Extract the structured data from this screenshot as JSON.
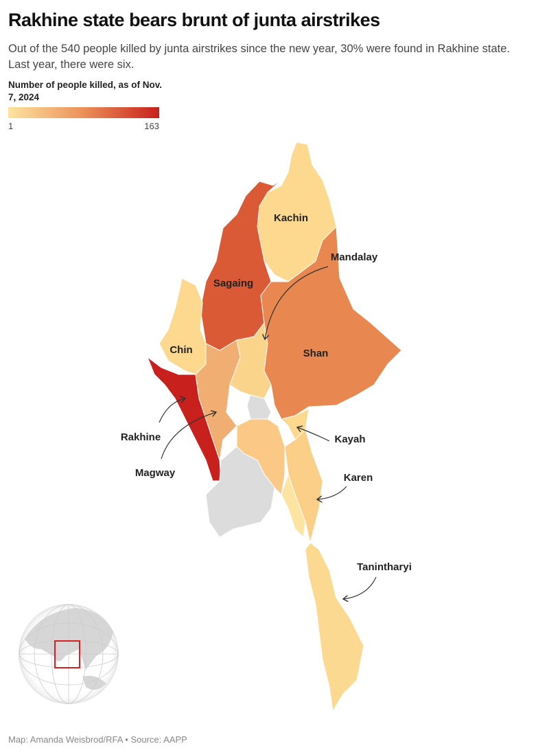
{
  "title": "Rakhine state bears brunt of junta airstrikes",
  "subtitle": "Out of the 540 people killed by junta airstrikes since the new year, 30% were found in Rakhine state. Last year, there were six.",
  "legend": {
    "title": "Number of people killed, as of Nov. 7, 2024",
    "min_label": "1",
    "max_label": "163",
    "color_low": "#fde3a0",
    "color_mid": "#eb9058",
    "color_high": "#c8201d",
    "no_data_color": "#dcdcdc"
  },
  "regions": [
    {
      "id": "kachin",
      "label": "Kachin",
      "color": "#fcd98f"
    },
    {
      "id": "sagaing",
      "label": "Sagaing",
      "color": "#d95a34"
    },
    {
      "id": "chin",
      "label": "Chin",
      "color": "#fcd98f"
    },
    {
      "id": "rakhine",
      "label": "Rakhine",
      "color": "#c8201d"
    },
    {
      "id": "magway",
      "label": "Magway",
      "color": "#f1ae72"
    },
    {
      "id": "mandalay",
      "label": "Mandalay",
      "color": "#fbd48c"
    },
    {
      "id": "shan",
      "label": "Shan",
      "color": "#e8874f"
    },
    {
      "id": "naypyitaw",
      "label": "",
      "color": "#dcdcdc"
    },
    {
      "id": "bago",
      "label": "",
      "color": "#fbc985"
    },
    {
      "id": "ayeyarwady",
      "label": "",
      "color": "#dcdcdc"
    },
    {
      "id": "kayah",
      "label": "Kayah",
      "color": "#fcd98f"
    },
    {
      "id": "karen",
      "label": "Karen",
      "color": "#fbcf88"
    },
    {
      "id": "mon",
      "label": "",
      "color": "#fde4a0"
    },
    {
      "id": "tanintharyi",
      "label": "Tanintharyi",
      "color": "#fcd990"
    }
  ],
  "locator": {
    "highlight_color": "#d42020"
  },
  "footer": "Map: Amanda Weisbrod/RFA • Source: AAPP"
}
